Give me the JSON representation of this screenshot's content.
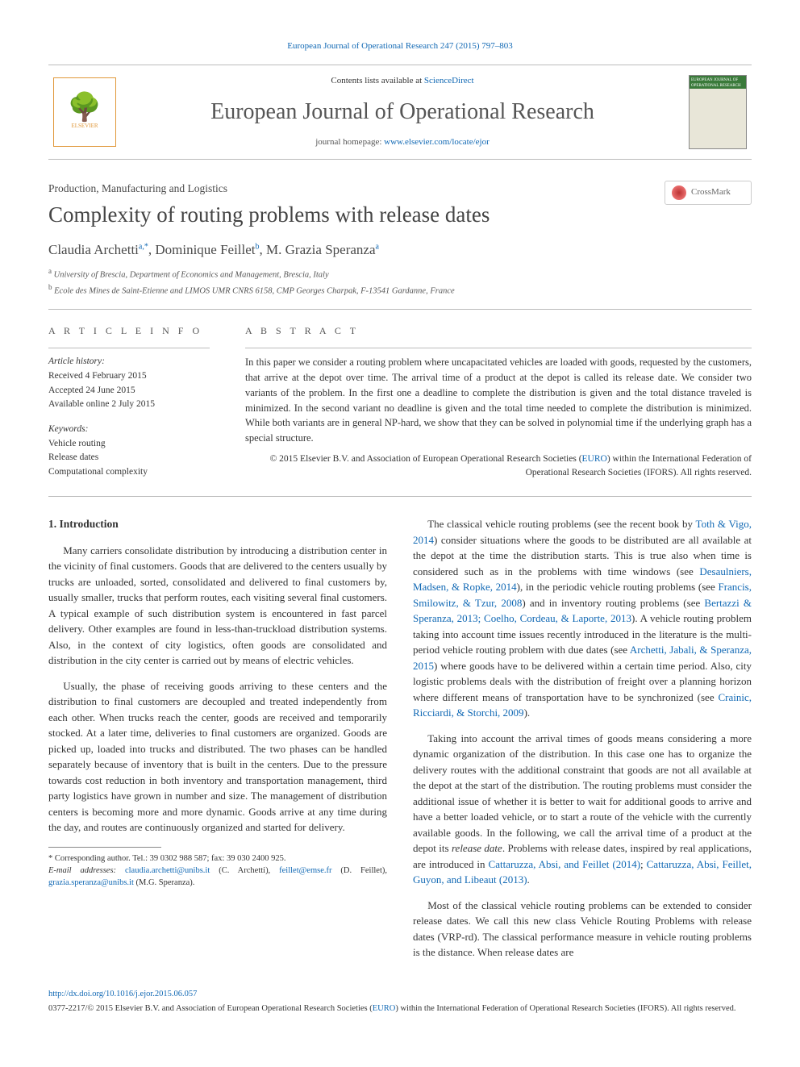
{
  "topLink": {
    "text": "European Journal of Operational Research 247 (2015) 797–803",
    "href": "#"
  },
  "masthead": {
    "contentsPrefix": "Contents lists available at ",
    "contentsLink": "ScienceDirect",
    "journalTitle": "European Journal of Operational Research",
    "homepagePrefix": "journal homepage: ",
    "homepageLink": "www.elsevier.com/locate/ejor",
    "publisher": "ELSEVIER",
    "coverText": "EUROPEAN JOURNAL OF OPERATIONAL RESEARCH"
  },
  "article": {
    "sectionLabel": "Production, Manufacturing and Logistics",
    "title": "Complexity of routing problems with release dates",
    "crossmark": "CrossMark",
    "authorsHtml": "Claudia Archetti<sup>a,*</sup>, Dominique Feillet<sup>b</sup>, M. Grazia Speranza<sup>a</sup>",
    "affiliations": [
      "a University of Brescia, Department of Economics and Management, Brescia, Italy",
      "b Ecole des Mines de Saint-Etienne and LIMOS UMR CNRS 6158, CMP Georges Charpak, F-13541 Gardanne, France"
    ]
  },
  "meta": {
    "infoHeading": "A R T I C L E   I N F O",
    "historyLabel": "Article history:",
    "received": "Received 4 February 2015",
    "accepted": "Accepted 24 June 2015",
    "online": "Available online 2 July 2015",
    "keywordsLabel": "Keywords:",
    "keywords": [
      "Vehicle routing",
      "Release dates",
      "Computational complexity"
    ],
    "abstractHeading": "A B S T R A C T",
    "abstract": "In this paper we consider a routing problem where uncapacitated vehicles are loaded with goods, requested by the customers, that arrive at the depot over time. The arrival time of a product at the depot is called its release date. We consider two variants of the problem. In the first one a deadline to complete the distribution is given and the total distance traveled is minimized. In the second variant no deadline is given and the total time needed to complete the distribution is minimized. While both variants are in general NP-hard, we show that they can be solved in polynomial time if the underlying graph has a special structure.",
    "copyrightPrefix": "© 2015 Elsevier B.V. and Association of European Operational Research Societies (",
    "euroLink": "EURO",
    "copyrightSuffix": ") within the International Federation of Operational Research Societies (IFORS). All rights reserved."
  },
  "body": {
    "sectionHeading": "1. Introduction",
    "p1": "Many carriers consolidate distribution by introducing a distribution center in the vicinity of final customers. Goods that are delivered to the centers usually by trucks are unloaded, sorted, consolidated and delivered to final customers by, usually smaller, trucks that perform routes, each visiting several final customers. A typical example of such distribution system is encountered in fast parcel delivery. Other examples are found in less-than-truckload distribution systems. Also, in the context of city logistics, often goods are consolidated and distribution in the city center is carried out by means of electric vehicles.",
    "p2": "Usually, the phase of receiving goods arriving to these centers and the distribution to final customers are decoupled and treated independently from each other. When trucks reach the center, goods are received and temporarily stocked. At a later time, deliveries to final customers are organized. Goods are picked up, loaded into trucks and distributed. The two phases can be handled separately because of inventory that is built in the centers. Due to the pressure towards cost reduction in both inventory and transportation management, third party logistics have grown in number and size. The management of distribution centers is becoming more and more dynamic. Goods arrive at any time during the day, and routes are continuously organized and started for delivery.",
    "p3_a": "The classical vehicle routing problems (see the recent book by ",
    "p3_l1": "Toth & Vigo, 2014",
    "p3_b": ") consider situations where the goods to be distributed are all available at the depot at the time the distribution starts. This is true also when time is considered such as in the problems with time windows (see ",
    "p3_l2": "Desaulniers, Madsen, & Ropke, 2014",
    "p3_c": "), in the periodic vehicle routing problems (see ",
    "p3_l3": "Francis, Smilowitz, & Tzur, 2008",
    "p3_d": ") and in inventory routing problems (see ",
    "p3_l4": "Bertazzi & Speranza, 2013; Coelho, Cordeau, & Laporte, 2013",
    "p3_e": "). A vehicle routing problem taking into account time issues recently introduced in the literature is the multi-period vehicle routing problem with due dates (see ",
    "p3_l5": "Archetti, Jabali, & Speranza, 2015",
    "p3_f": ") where goods have to be delivered within a certain time period. Also, city logistic problems deals with the distribution of freight over a planning horizon where different means of transportation have to be synchronized (see ",
    "p3_l6": "Crainic, Ricciardi, & Storchi, 2009",
    "p3_g": ").",
    "p4_a": "Taking into account the arrival times of goods means considering a more dynamic organization of the distribution. In this case one has to organize the delivery routes with the additional constraint that goods are not all available at the depot at the start of the distribution. The routing problems must consider the additional issue of whether it is better to wait for additional goods to arrive and have a better loaded vehicle, or to start a route of the vehicle with the currently available goods. In the following, we call the arrival time of a product at the depot its ",
    "p4_i": "release date",
    "p4_b": ". Problems with release dates, inspired by real applications, are introduced in ",
    "p4_l1": "Cattaruzza, Absi, and Feillet (2014)",
    "p4_c": "; ",
    "p4_l2": "Cattaruzza, Absi, Feillet, Guyon, and Libeaut (2013)",
    "p4_d": ".",
    "p5": "Most of the classical vehicle routing problems can be extended to consider release dates. We call this new class Vehicle Routing Problems with release dates (VRP-rd). The classical performance measure in vehicle routing problems is the distance. When release dates are"
  },
  "footnotes": {
    "corr": "* Corresponding author. Tel.: 39 0302 988 587; fax: 39 030 2400 925.",
    "emailsLabel": "E-mail addresses: ",
    "e1": "claudia.archetti@unibs.it",
    "e1p": " (C. Archetti), ",
    "e2": "feillet@emse.fr",
    "e2p": " (D. Feillet), ",
    "e3": "grazia.speranza@unibs.it",
    "e3p": " (M.G. Speranza)."
  },
  "footer": {
    "doi": "http://dx.doi.org/10.1016/j.ejor.2015.06.057",
    "issnPrefix": "0377-2217/© 2015 Elsevier B.V. and Association of European Operational Research Societies (",
    "euroLink": "EURO",
    "issnSuffix": ") within the International Federation of Operational Research Societies (IFORS). All rights reserved."
  },
  "colors": {
    "link": "#1068b4",
    "text": "#333333",
    "rule": "#bbbbbb",
    "elsevierOrange": "#e0983a"
  }
}
